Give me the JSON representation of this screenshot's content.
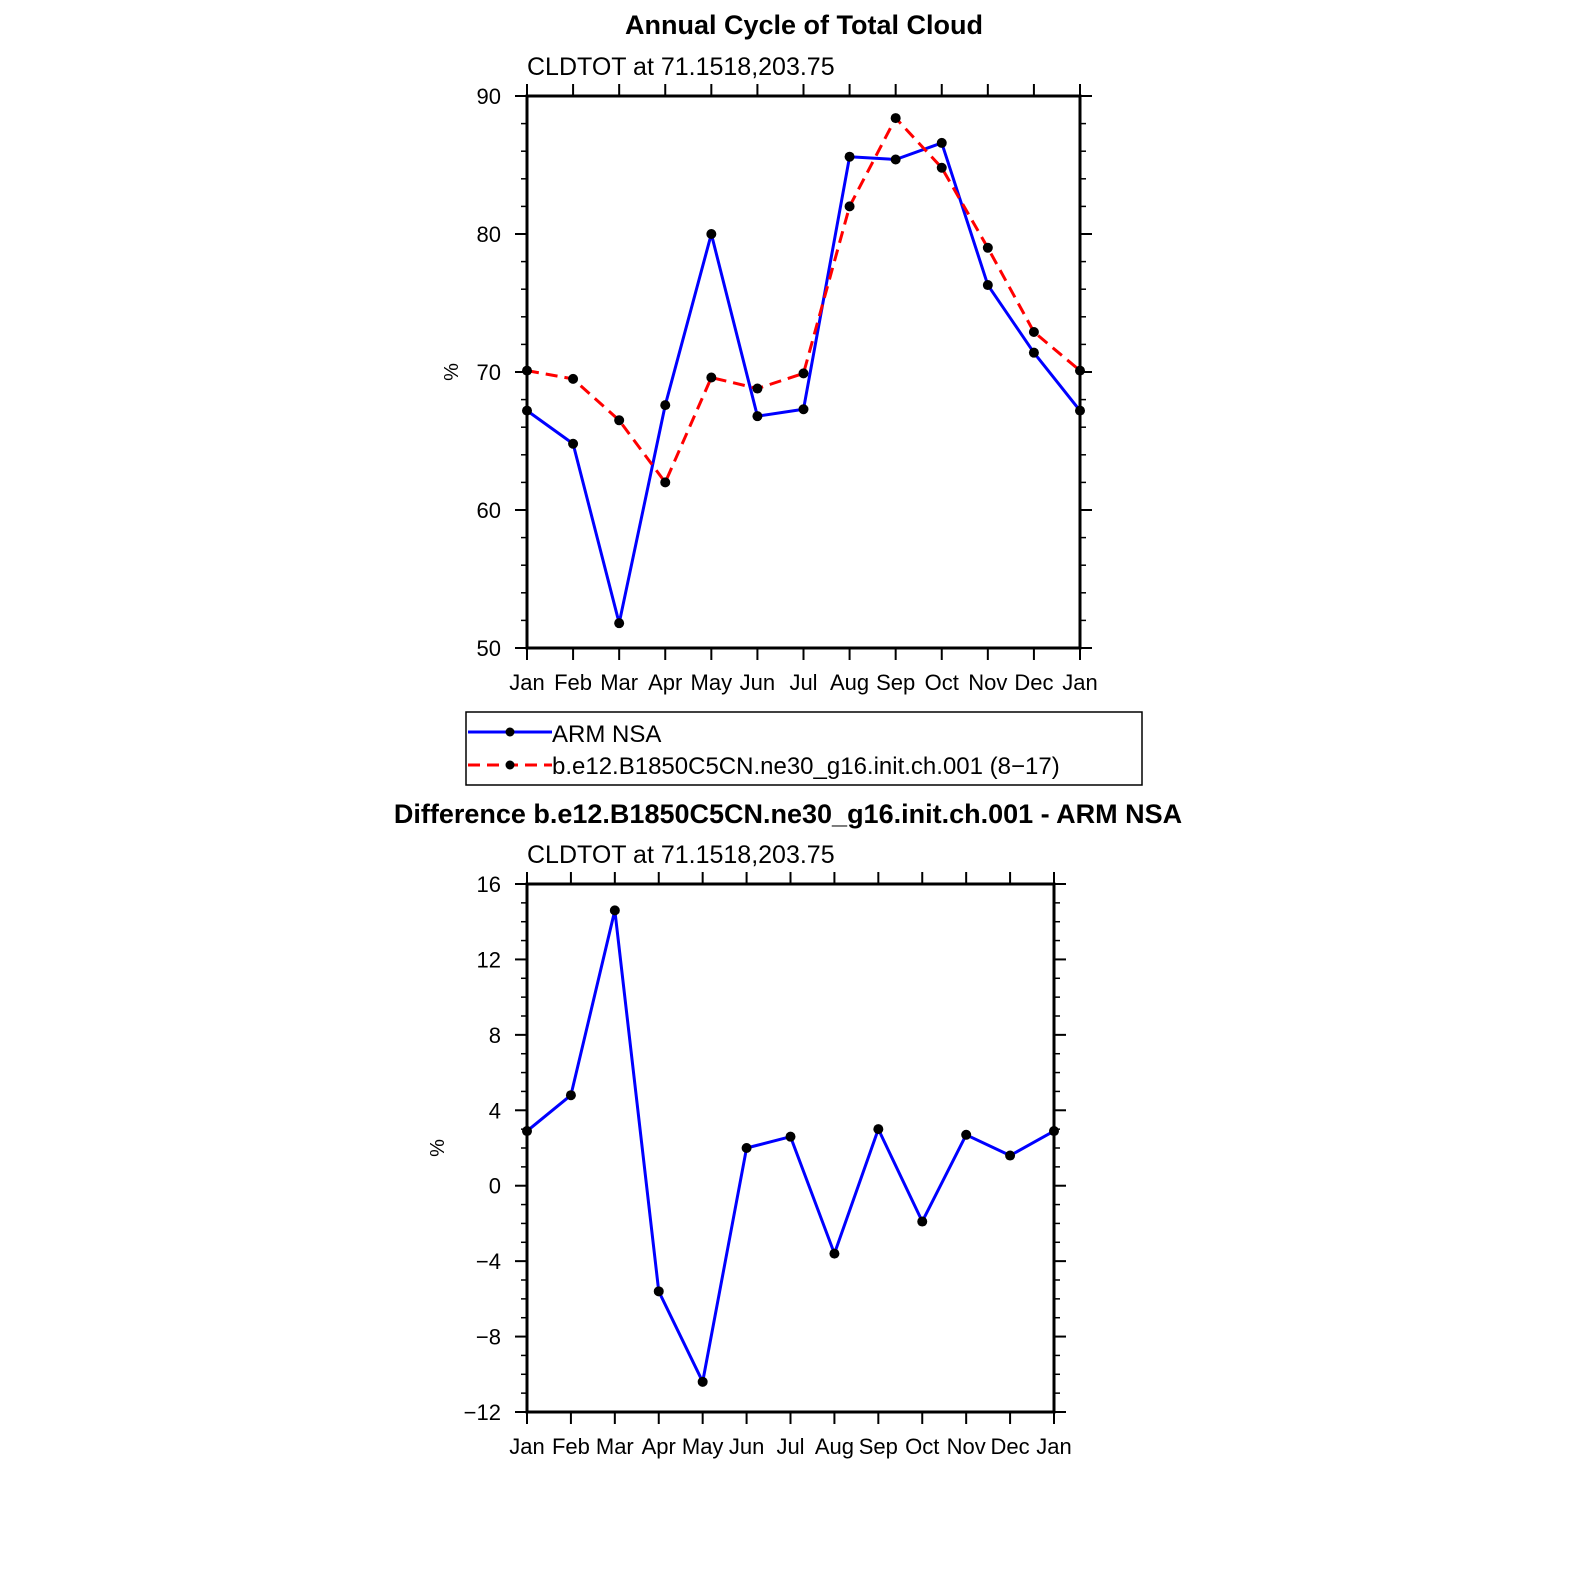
{
  "chart_data": [
    {
      "type": "line",
      "title": "Annual Cycle of Total Cloud",
      "subtitle": "CLDTOT at 71.1518,203.75",
      "xlabel": "",
      "ylabel": "%",
      "categories": [
        "Jan",
        "Feb",
        "Mar",
        "Apr",
        "May",
        "Jun",
        "Jul",
        "Aug",
        "Sep",
        "Oct",
        "Nov",
        "Dec",
        "Jan"
      ],
      "ylim": [
        50,
        90
      ],
      "yticks": [
        50,
        60,
        70,
        80,
        90
      ],
      "yticks_labels": [
        "50",
        "60",
        "70",
        "80",
        "90"
      ],
      "series": [
        {
          "name": "ARM NSA",
          "color": "#0000ff",
          "dash": "solid",
          "values": [
            67.2,
            64.8,
            51.8,
            67.6,
            80.0,
            66.8,
            67.3,
            85.6,
            85.4,
            86.6,
            76.3,
            71.4,
            67.2
          ]
        },
        {
          "name": "b.e12.B1850C5CN.ne30_g16.init.ch.001 (8−17)",
          "color": "#ff0000",
          "dash": "dashed",
          "values": [
            70.1,
            69.5,
            66.5,
            62.0,
            69.6,
            68.8,
            69.9,
            82.0,
            88.4,
            84.8,
            79.0,
            72.9,
            70.1
          ]
        }
      ],
      "legend_position": "bottom"
    },
    {
      "type": "line",
      "title": "Difference b.e12.B1850C5CN.ne30_g16.init.ch.001 - ARM NSA",
      "subtitle": "CLDTOT at 71.1518,203.75",
      "xlabel": "",
      "ylabel": "%",
      "categories": [
        "Jan",
        "Feb",
        "Mar",
        "Apr",
        "May",
        "Jun",
        "Jul",
        "Aug",
        "Sep",
        "Oct",
        "Nov",
        "Dec",
        "Jan"
      ],
      "ylim": [
        -12,
        16
      ],
      "yticks": [
        -12,
        -8,
        -4,
        0,
        4,
        8,
        12,
        16
      ],
      "yticks_labels": [
        "−12",
        "−8",
        "−4",
        "0",
        "4",
        "8",
        "12",
        "16"
      ],
      "series": [
        {
          "name": "Difference",
          "color": "#0000ff",
          "dash": "solid",
          "values": [
            2.9,
            4.8,
            14.6,
            -5.6,
            -10.4,
            2.0,
            2.6,
            -3.6,
            3.0,
            -1.9,
            2.7,
            1.6,
            2.9
          ]
        }
      ]
    }
  ]
}
